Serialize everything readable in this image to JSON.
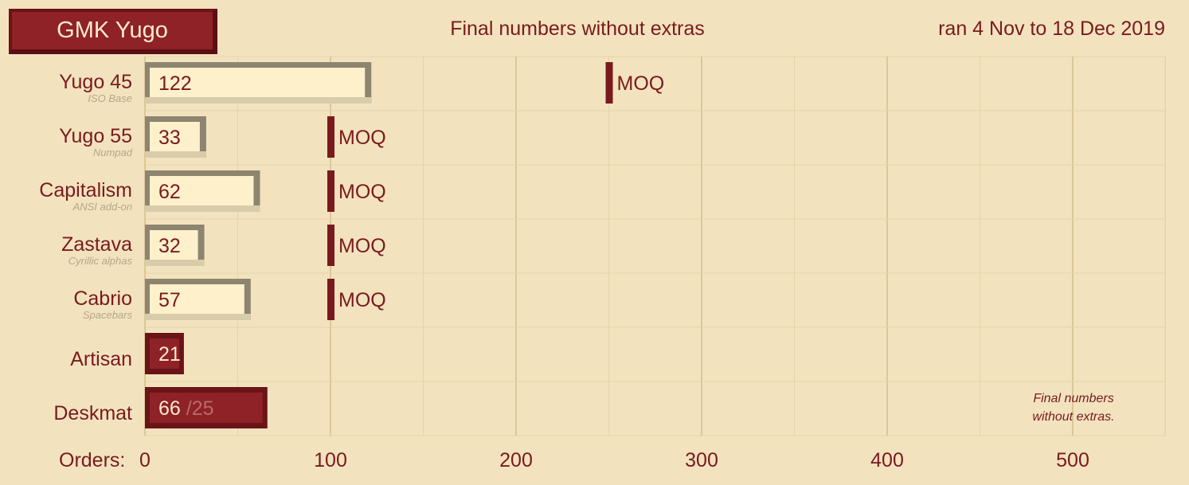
{
  "header": {
    "title": "GMK Yugo",
    "subtitle": "Final numbers without extras",
    "date_range": "ran 4 Nov to 18 Dec 2019"
  },
  "axis": {
    "label": "Orders:",
    "ticks": [
      "0",
      "100",
      "200",
      "300",
      "400",
      "500"
    ]
  },
  "note": {
    "line1": "Final numbers",
    "line2": "without extras."
  },
  "colors": {
    "background": "#f2e3be",
    "grid": "#e6d3a8",
    "grid_major": "#dcc79a",
    "bar_light": "#fdf0cb",
    "bar_light_shadow": "#8d8570",
    "bar_dark": "#8e2226",
    "bar_dark_shadow": "#6a1418",
    "text": "#7a1a1e",
    "moq_marker": "#7a1a1e"
  },
  "chart_data": {
    "type": "bar",
    "orientation": "horizontal",
    "title": "GMK Yugo",
    "subtitle": "Final numbers without extras",
    "xlabel": "Orders:",
    "xlim": [
      0,
      550
    ],
    "grid": true,
    "categories": [
      "Yugo 45",
      "Yugo 55",
      "Capitalism",
      "Zastava",
      "Cabrio",
      "Artisan",
      "Deskmat"
    ],
    "sublabels": [
      "ISO Base",
      "Numpad",
      "ANSI add-on",
      "Cyrillic alphas",
      "Spacebars",
      "",
      ""
    ],
    "values": [
      122,
      33,
      62,
      32,
      57,
      21,
      66
    ],
    "value_labels": [
      "122",
      "33",
      "62",
      "32",
      "57",
      "21",
      "66"
    ],
    "secondary_labels": [
      "",
      "",
      "",
      "",
      "",
      "",
      "/25"
    ],
    "styles": [
      "light",
      "light",
      "light",
      "light",
      "light",
      "dark",
      "dark"
    ],
    "moq": [
      250,
      100,
      100,
      100,
      100,
      null,
      null
    ],
    "moq_label": "MOQ"
  }
}
